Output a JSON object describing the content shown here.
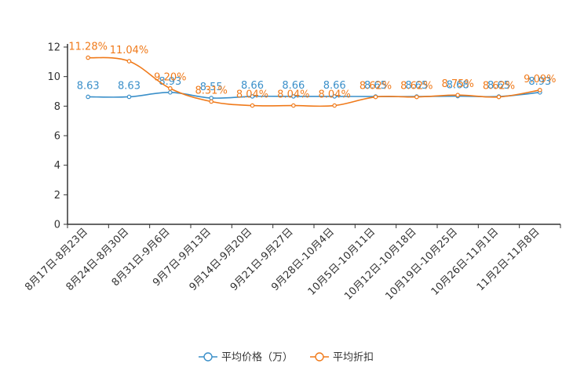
{
  "chart_data": {
    "type": "line",
    "title": "",
    "xlabel": "",
    "ylabel": "",
    "ylim": [
      0,
      12
    ],
    "yticks": [
      0,
      2,
      4,
      6,
      8,
      10,
      12
    ],
    "categories": [
      "8月17日-8月23日",
      "8月24日-8月30日",
      "8月31日-9月6日",
      "9月7日-9月13日",
      "9月14日-9月20日",
      "9月21日-9月27日",
      "9月28日-10月4日",
      "10月5日-10月11日",
      "10月12日-10月18日",
      "10月19日-10月25日",
      "10月26日-11月1日",
      "11月2日-11月8日"
    ],
    "series": [
      {
        "name": "平均价格（万）",
        "color": "#3a8fc9",
        "values": [
          8.63,
          8.63,
          8.93,
          8.55,
          8.66,
          8.66,
          8.66,
          8.65,
          8.65,
          8.68,
          8.65,
          8.93
        ],
        "labels": [
          "8.63",
          "8.63",
          "8.93",
          "8.55",
          "8.66",
          "8.66",
          "8.66",
          "8.65",
          "8.65",
          "8.68",
          "8.65",
          "8.93"
        ]
      },
      {
        "name": "平均折扣",
        "color": "#f07a1a",
        "values": [
          11.28,
          11.04,
          9.2,
          8.31,
          8.04,
          8.04,
          8.04,
          8.62,
          8.62,
          8.75,
          8.62,
          9.09
        ],
        "labels": [
          "11.28%",
          "11.04%",
          "9.20%",
          "8.31%",
          "8.04%",
          "8.04%",
          "8.04%",
          "8.62%",
          "8.62%",
          "8.75%",
          "8.62%",
          "9.09%"
        ]
      }
    ],
    "legend_position": "bottom-center"
  }
}
